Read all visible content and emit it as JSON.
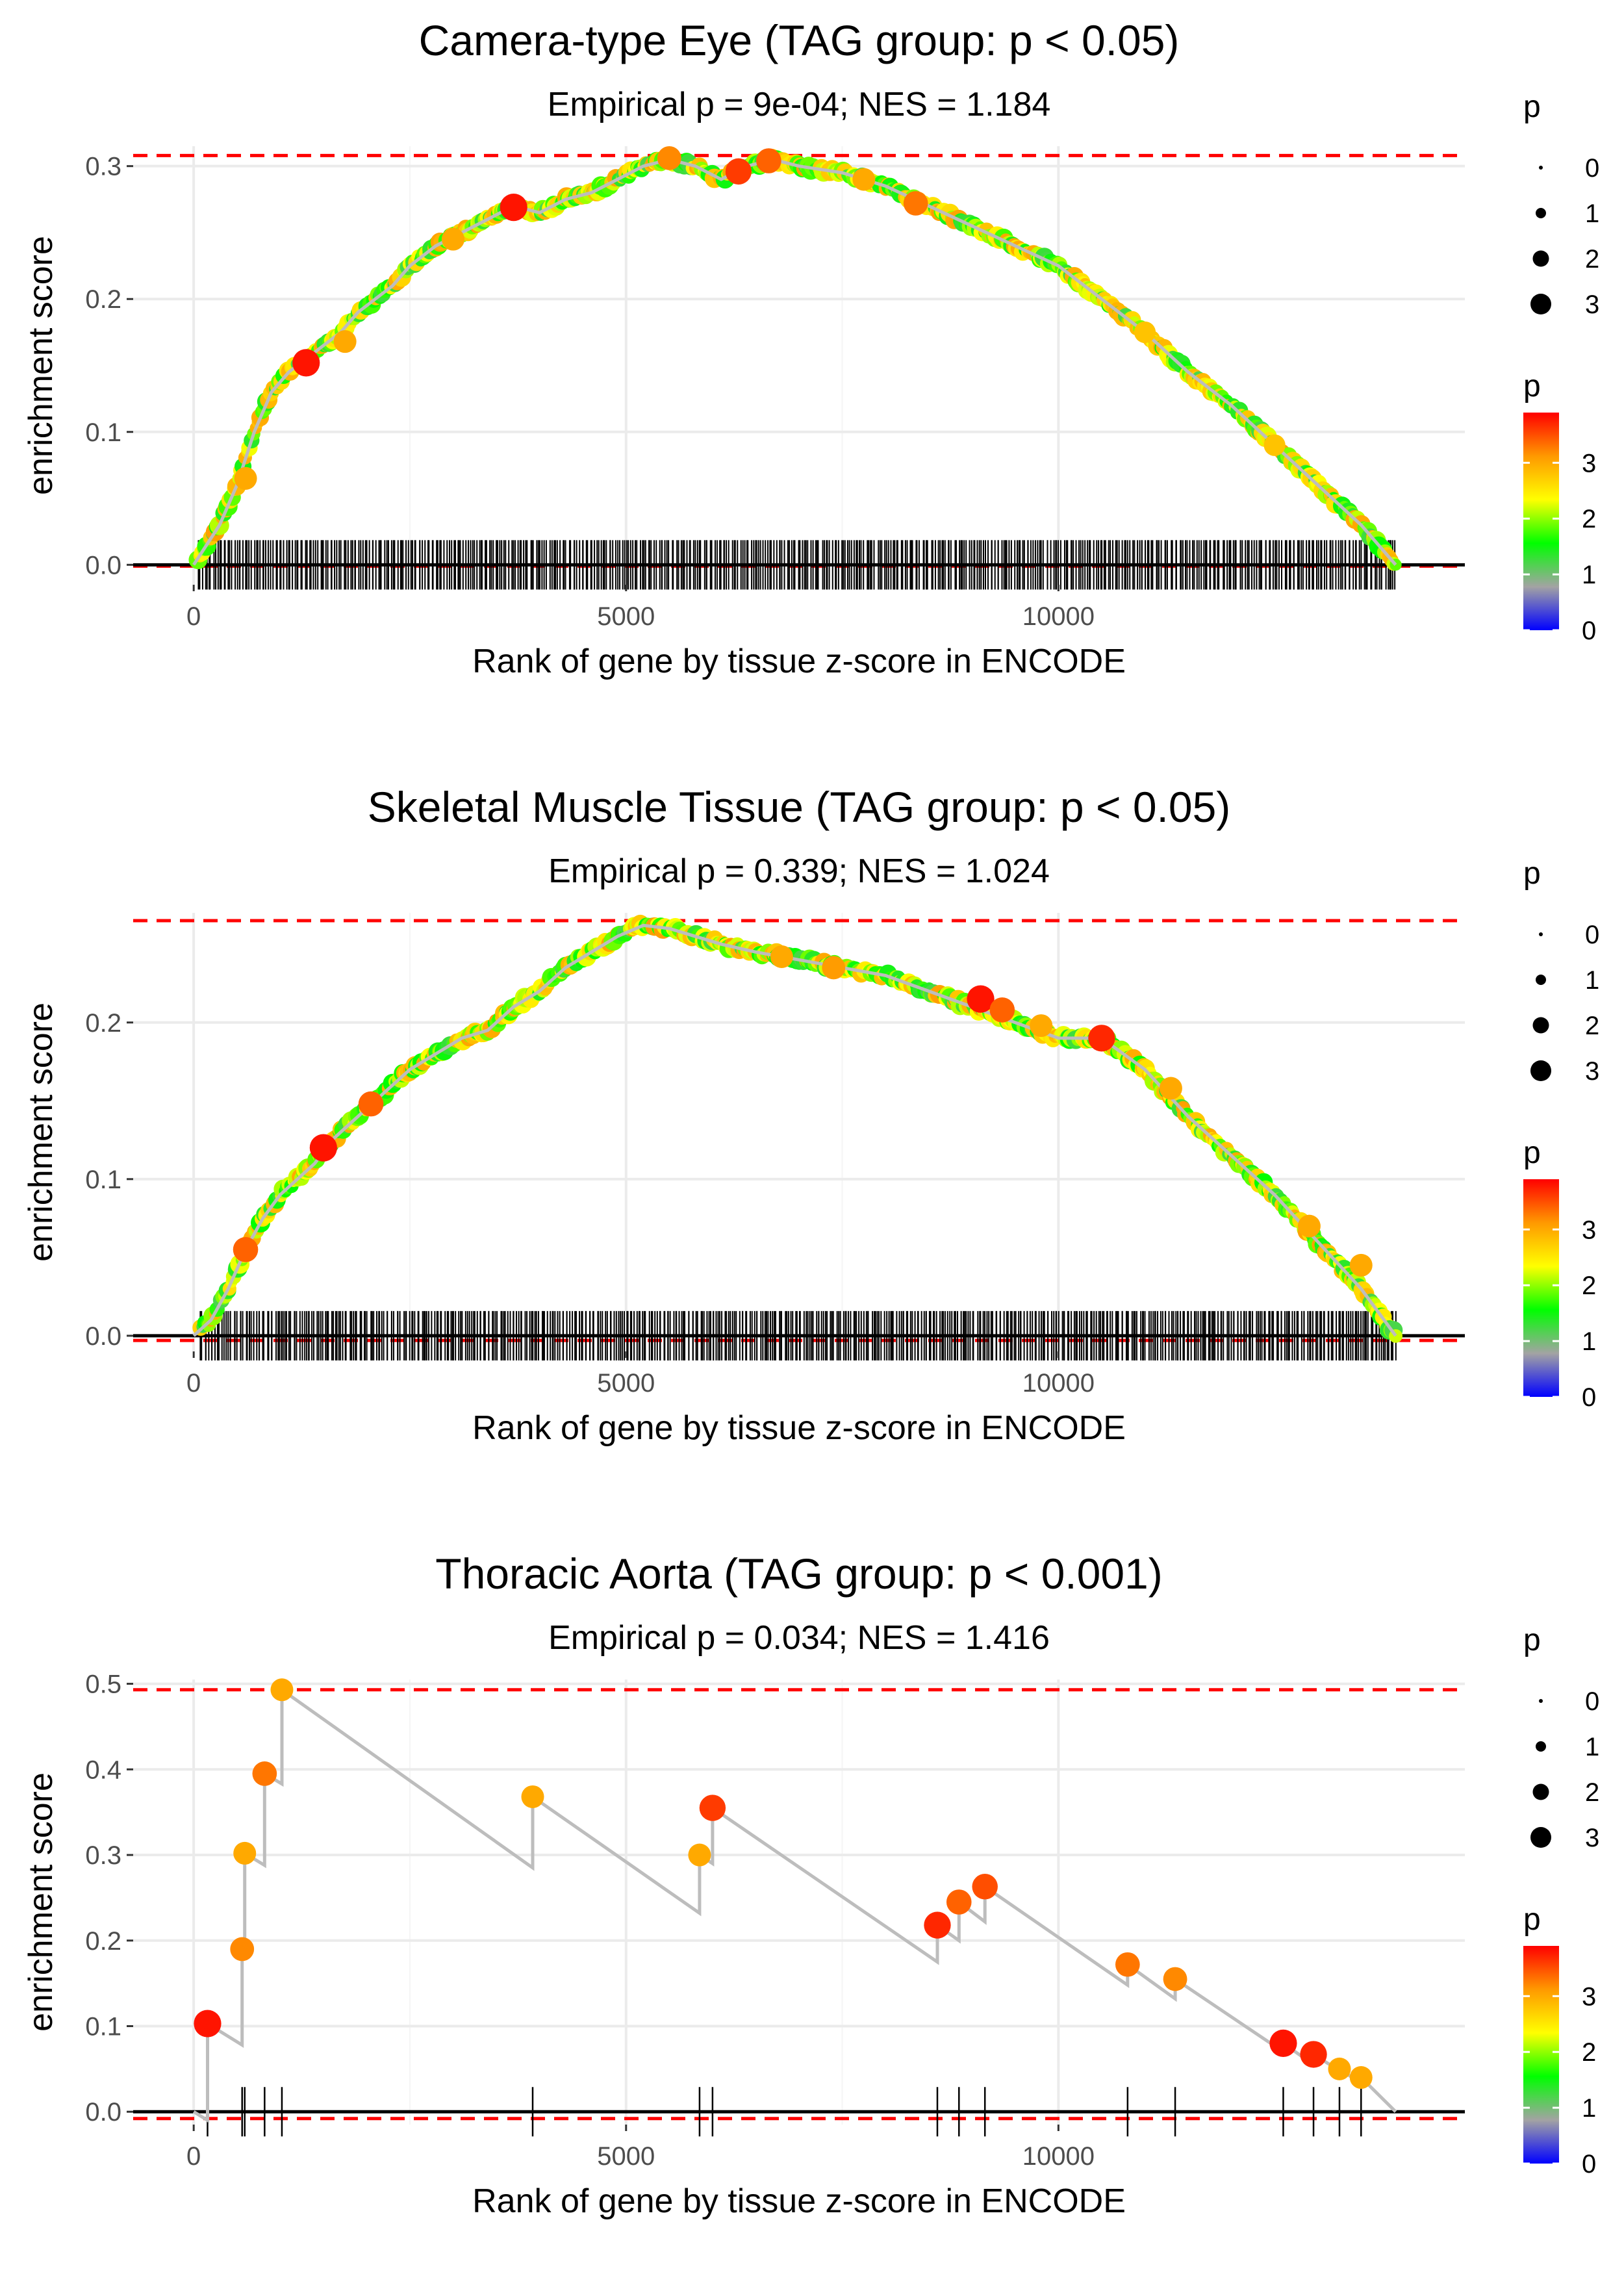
{
  "figure_title": "GSEA-style running enrichment plots",
  "colors": {
    "threshold_line": "#ff0000",
    "zero_line": "#000000",
    "curve": "#bdbdbd",
    "gridline": "#ebebeb",
    "rug": "#000000",
    "gradient": [
      "#0000ff",
      "#a3a3a3",
      "#00ff00",
      "#ffff00",
      "#ff9900",
      "#ff0000"
    ]
  },
  "chart_data": [
    {
      "type": "line",
      "title": "Camera-type Eye (TAG group: p < 0.05)",
      "subtitle": "Empirical p = 9e-04; NES = 1.184",
      "xlabel": "Rank of gene by tissue z-score in ENCODE",
      "ylabel": "enrichment score",
      "xlim": [
        -700,
        14700
      ],
      "ylim": [
        -0.015,
        0.315
      ],
      "xticks": [
        0,
        5000,
        10000
      ],
      "yticks": [
        0.0,
        0.1,
        0.2,
        0.3
      ],
      "ytick_labels": [
        "0.0",
        "0.1",
        "0.2",
        "0.3"
      ],
      "es_max": 0.308,
      "es_min": -0.001,
      "rug": {
        "mode": "dense",
        "start": 50,
        "end": 13900,
        "count": 560
      },
      "curve": {
        "x": [
          0,
          150,
          300,
          500,
          700,
          900,
          1100,
          1300,
          1500,
          1700,
          1900,
          2100,
          2300,
          2500,
          2800,
          3100,
          3400,
          3700,
          4000,
          4300,
          4600,
          4900,
          5200,
          5500,
          5800,
          6100,
          6400,
          6700,
          7000,
          7500,
          8000,
          8500,
          9000,
          9500,
          10000,
          10500,
          11000,
          11500,
          12000,
          12500,
          13000,
          13500,
          13900
        ],
        "y": [
          0.0,
          0.015,
          0.03,
          0.06,
          0.1,
          0.13,
          0.145,
          0.155,
          0.165,
          0.175,
          0.19,
          0.2,
          0.21,
          0.225,
          0.24,
          0.25,
          0.26,
          0.27,
          0.265,
          0.275,
          0.28,
          0.29,
          0.3,
          0.305,
          0.3,
          0.29,
          0.3,
          0.305,
          0.3,
          0.295,
          0.285,
          0.27,
          0.255,
          0.24,
          0.225,
          0.2,
          0.175,
          0.145,
          0.12,
          0.09,
          0.06,
          0.03,
          0.0
        ]
      },
      "highlights": [
        {
          "x": 1300,
          "y": 0.152,
          "p": 3.8
        },
        {
          "x": 1750,
          "y": 0.168,
          "p": 3.0
        },
        {
          "x": 3700,
          "y": 0.269,
          "p": 3.8
        },
        {
          "x": 3000,
          "y": 0.245,
          "p": 3.0
        },
        {
          "x": 6300,
          "y": 0.296,
          "p": 3.6
        },
        {
          "x": 6650,
          "y": 0.304,
          "p": 3.4
        },
        {
          "x": 5500,
          "y": 0.306,
          "p": 3.2
        },
        {
          "x": 8350,
          "y": 0.272,
          "p": 3.3
        },
        {
          "x": 7750,
          "y": 0.29,
          "p": 3.0
        },
        {
          "x": 600,
          "y": 0.065,
          "p": 3.0
        },
        {
          "x": 12500,
          "y": 0.09,
          "p": 2.8
        },
        {
          "x": 11000,
          "y": 0.175,
          "p": 2.8
        }
      ]
    },
    {
      "type": "line",
      "title": "Skeletal Muscle Tissue (TAG group: p < 0.05)",
      "subtitle": "Empirical p = 0.339; NES = 1.024",
      "xlabel": "Rank of gene by tissue z-score in ENCODE",
      "ylabel": "enrichment score",
      "xlim": [
        -700,
        14700
      ],
      "ylim": [
        -0.01,
        0.27
      ],
      "xticks": [
        0,
        5000,
        10000
      ],
      "yticks": [
        0.0,
        0.1,
        0.2
      ],
      "ytick_labels": [
        "0.0",
        "0.1",
        "0.2"
      ],
      "es_max": 0.265,
      "es_min": -0.003,
      "rug": {
        "mode": "dense",
        "start": 80,
        "end": 13900,
        "count": 580
      },
      "curve": {
        "x": [
          0,
          200,
          400,
          600,
          800,
          1000,
          1200,
          1400,
          1600,
          1800,
          2000,
          2200,
          2500,
          2800,
          3100,
          3400,
          3700,
          4000,
          4300,
          4600,
          4900,
          5200,
          5500,
          5800,
          6100,
          6500,
          7000,
          7500,
          8000,
          8500,
          9000,
          9500,
          10000,
          10500,
          11000,
          11500,
          12000,
          12500,
          13000,
          13500,
          13900
        ],
        "y": [
          0.0,
          0.01,
          0.03,
          0.055,
          0.075,
          0.09,
          0.1,
          0.11,
          0.125,
          0.135,
          0.145,
          0.155,
          0.17,
          0.18,
          0.19,
          0.195,
          0.21,
          0.22,
          0.235,
          0.245,
          0.255,
          0.262,
          0.26,
          0.255,
          0.25,
          0.245,
          0.24,
          0.235,
          0.23,
          0.22,
          0.21,
          0.2,
          0.19,
          0.19,
          0.17,
          0.14,
          0.115,
          0.09,
          0.06,
          0.03,
          0.0
        ]
      },
      "highlights": [
        {
          "x": 600,
          "y": 0.055,
          "p": 3.4
        },
        {
          "x": 1500,
          "y": 0.12,
          "p": 3.8
        },
        {
          "x": 2050,
          "y": 0.148,
          "p": 3.4
        },
        {
          "x": 9100,
          "y": 0.215,
          "p": 3.8
        },
        {
          "x": 9350,
          "y": 0.208,
          "p": 3.4
        },
        {
          "x": 9800,
          "y": 0.198,
          "p": 3.0
        },
        {
          "x": 10500,
          "y": 0.19,
          "p": 3.7
        },
        {
          "x": 7400,
          "y": 0.235,
          "p": 3.1
        },
        {
          "x": 6800,
          "y": 0.242,
          "p": 3.0
        },
        {
          "x": 11300,
          "y": 0.158,
          "p": 3.0
        },
        {
          "x": 12900,
          "y": 0.07,
          "p": 3.0
        },
        {
          "x": 13500,
          "y": 0.045,
          "p": 3.0
        }
      ]
    },
    {
      "type": "line",
      "title": "Thoracic Aorta (TAG group: p < 0.001)",
      "subtitle": "Empirical p = 0.034; NES = 1.416",
      "xlabel": "Rank of gene by tissue z-score in ENCODE",
      "ylabel": "enrichment score",
      "xlim": [
        -700,
        14700
      ],
      "ylim": [
        -0.015,
        0.505
      ],
      "xticks": [
        0,
        5000,
        10000
      ],
      "yticks": [
        0.0,
        0.1,
        0.2,
        0.3,
        0.4,
        0.5
      ],
      "ytick_labels": [
        "0.0",
        "0.1",
        "0.2",
        "0.3",
        "0.4",
        "0.5"
      ],
      "es_max": 0.493,
      "es_min": -0.008,
      "rug": {
        "mode": "list",
        "positions": [
          160,
          560,
          590,
          820,
          1020,
          3920,
          5850,
          6000,
          8600,
          8850,
          9150,
          10800,
          11350,
          12600,
          12950,
          13250,
          13500
        ]
      },
      "curve": {
        "x": [
          0,
          160,
          160,
          560,
          560,
          590,
          590,
          820,
          820,
          1020,
          1020,
          3920,
          3920,
          5850,
          5850,
          6000,
          6000,
          8600,
          8600,
          8850,
          8850,
          9150,
          9150,
          10800,
          10800,
          11350,
          11350,
          12600,
          12600,
          12950,
          12950,
          13250,
          13250,
          13500,
          13500,
          13900
        ],
        "y": [
          0.0,
          -0.01,
          0.103,
          0.078,
          0.19,
          0.19,
          0.302,
          0.288,
          0.395,
          0.383,
          0.493,
          0.285,
          0.368,
          0.232,
          0.3,
          0.29,
          0.355,
          0.175,
          0.218,
          0.2,
          0.245,
          0.222,
          0.263,
          0.148,
          0.172,
          0.132,
          0.155,
          0.07,
          0.08,
          0.055,
          0.067,
          0.048,
          0.05,
          0.033,
          0.04,
          0.0
        ]
      },
      "highlights": [
        {
          "x": 160,
          "y": 0.103,
          "p": 3.8
        },
        {
          "x": 560,
          "y": 0.19,
          "p": 3.2
        },
        {
          "x": 590,
          "y": 0.302,
          "p": 3.0
        },
        {
          "x": 820,
          "y": 0.395,
          "p": 3.3
        },
        {
          "x": 1020,
          "y": 0.493,
          "p": 3.0
        },
        {
          "x": 3920,
          "y": 0.368,
          "p": 3.0
        },
        {
          "x": 5850,
          "y": 0.3,
          "p": 3.0
        },
        {
          "x": 6000,
          "y": 0.355,
          "p": 3.6
        },
        {
          "x": 8600,
          "y": 0.218,
          "p": 3.7
        },
        {
          "x": 8850,
          "y": 0.245,
          "p": 3.4
        },
        {
          "x": 9150,
          "y": 0.263,
          "p": 3.5
        },
        {
          "x": 10800,
          "y": 0.172,
          "p": 3.3
        },
        {
          "x": 11350,
          "y": 0.155,
          "p": 3.2
        },
        {
          "x": 12600,
          "y": 0.08,
          "p": 3.8
        },
        {
          "x": 12950,
          "y": 0.067,
          "p": 3.7
        },
        {
          "x": 13250,
          "y": 0.05,
          "p": 3.0
        },
        {
          "x": 13500,
          "y": 0.04,
          "p": 3.0
        }
      ]
    }
  ],
  "legend": {
    "size_title": "p",
    "size_labels": [
      "0",
      "1",
      "2",
      "3"
    ],
    "color_title": "p",
    "color_labels": [
      "0",
      "1",
      "2",
      "3"
    ],
    "color_range": [
      0,
      3.9
    ]
  }
}
